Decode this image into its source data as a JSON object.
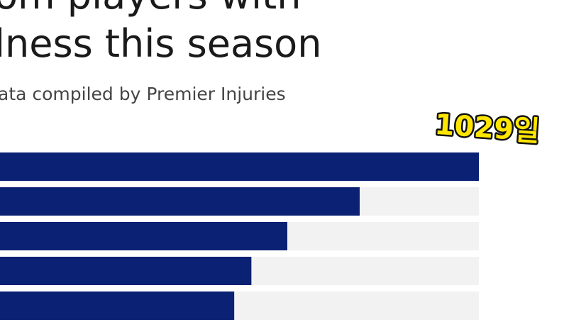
{
  "chart_data": {
    "type": "bar",
    "orientation": "horizontal",
    "title_lines": [
      "om players with",
      "lness this season"
    ],
    "subtitle": "ata compiled by Premier Injuries",
    "categories": [
      null,
      null,
      null,
      null,
      null
    ],
    "values": [
      1029,
      800,
      661,
      592,
      559
    ],
    "value_labels": [
      "1029일",
      null,
      null,
      null,
      null
    ],
    "color": "#0b2174",
    "track_color": "#f2f2f2",
    "xlim": [
      0,
      1029
    ]
  }
}
